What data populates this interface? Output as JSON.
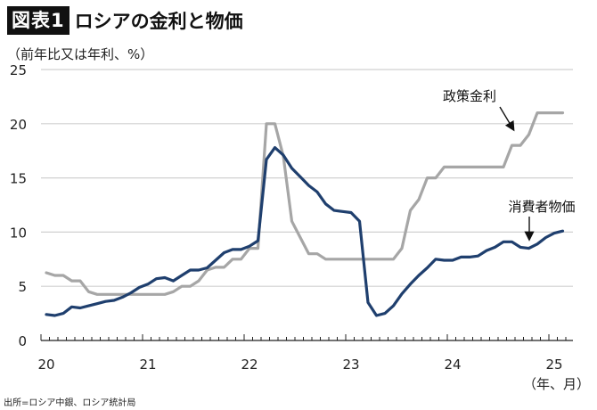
{
  "header": {
    "badge": "図表1",
    "title": "ロシアの金利と物価"
  },
  "axes": {
    "y_unit": "（前年比又は年利、%）",
    "x_unit": "（年、月）"
  },
  "source": "出所=ロシア中銀、ロシア統計局",
  "colors": {
    "cpi": "#1f3f6e",
    "policy_rate": "#a6a6a6",
    "grid": "#d0d0d0",
    "axis": "#222222"
  },
  "chart_data": {
    "type": "line",
    "title": "ロシアの金利と物価",
    "xlabel": "（年、月）",
    "ylabel": "（前年比又は年利、%）",
    "ylim": [
      0,
      25
    ],
    "yticks": [
      0,
      5,
      10,
      15,
      20,
      25
    ],
    "xtick_labels": [
      "20",
      "21",
      "22",
      "23",
      "24",
      "25"
    ],
    "grid": true,
    "x_start": "2020-01",
    "x_end": "2025-02",
    "frequency": "monthly",
    "annotations": [
      {
        "text": "政策金利",
        "series": "policy_rate",
        "arrow_to": "2024-08"
      },
      {
        "text": "消費者物価",
        "series": "cpi",
        "arrow_to": "2024-10"
      }
    ],
    "series": [
      {
        "name": "消費者物価",
        "key": "cpi",
        "values": [
          2.4,
          2.3,
          2.5,
          3.1,
          3.0,
          3.2,
          3.4,
          3.6,
          3.7,
          4.0,
          4.4,
          4.9,
          5.2,
          5.7,
          5.8,
          5.5,
          6.0,
          6.5,
          6.5,
          6.7,
          7.4,
          8.1,
          8.4,
          8.4,
          8.7,
          9.2,
          16.7,
          17.8,
          17.1,
          15.9,
          15.1,
          14.3,
          13.7,
          12.6,
          12.0,
          11.9,
          11.8,
          11.0,
          3.5,
          2.3,
          2.5,
          3.2,
          4.3,
          5.2,
          6.0,
          6.7,
          7.5,
          7.4,
          7.4,
          7.7,
          7.7,
          7.8,
          8.3,
          8.6,
          9.1,
          9.1,
          8.6,
          8.5,
          8.9,
          9.5,
          9.9,
          10.1
        ]
      },
      {
        "name": "政策金利",
        "key": "policy_rate",
        "values": [
          6.25,
          6.0,
          6.0,
          5.5,
          5.5,
          4.5,
          4.25,
          4.25,
          4.25,
          4.25,
          4.25,
          4.25,
          4.25,
          4.25,
          4.25,
          4.5,
          5.0,
          5.0,
          5.5,
          6.5,
          6.75,
          6.75,
          7.5,
          7.5,
          8.5,
          8.5,
          20.0,
          20.0,
          17.0,
          11.0,
          9.5,
          8.0,
          8.0,
          7.5,
          7.5,
          7.5,
          7.5,
          7.5,
          7.5,
          7.5,
          7.5,
          7.5,
          8.5,
          12.0,
          13.0,
          15.0,
          15.0,
          16.0,
          16.0,
          16.0,
          16.0,
          16.0,
          16.0,
          16.0,
          16.0,
          18.0,
          18.0,
          19.0,
          21.0,
          21.0,
          21.0,
          21.0
        ]
      }
    ]
  }
}
